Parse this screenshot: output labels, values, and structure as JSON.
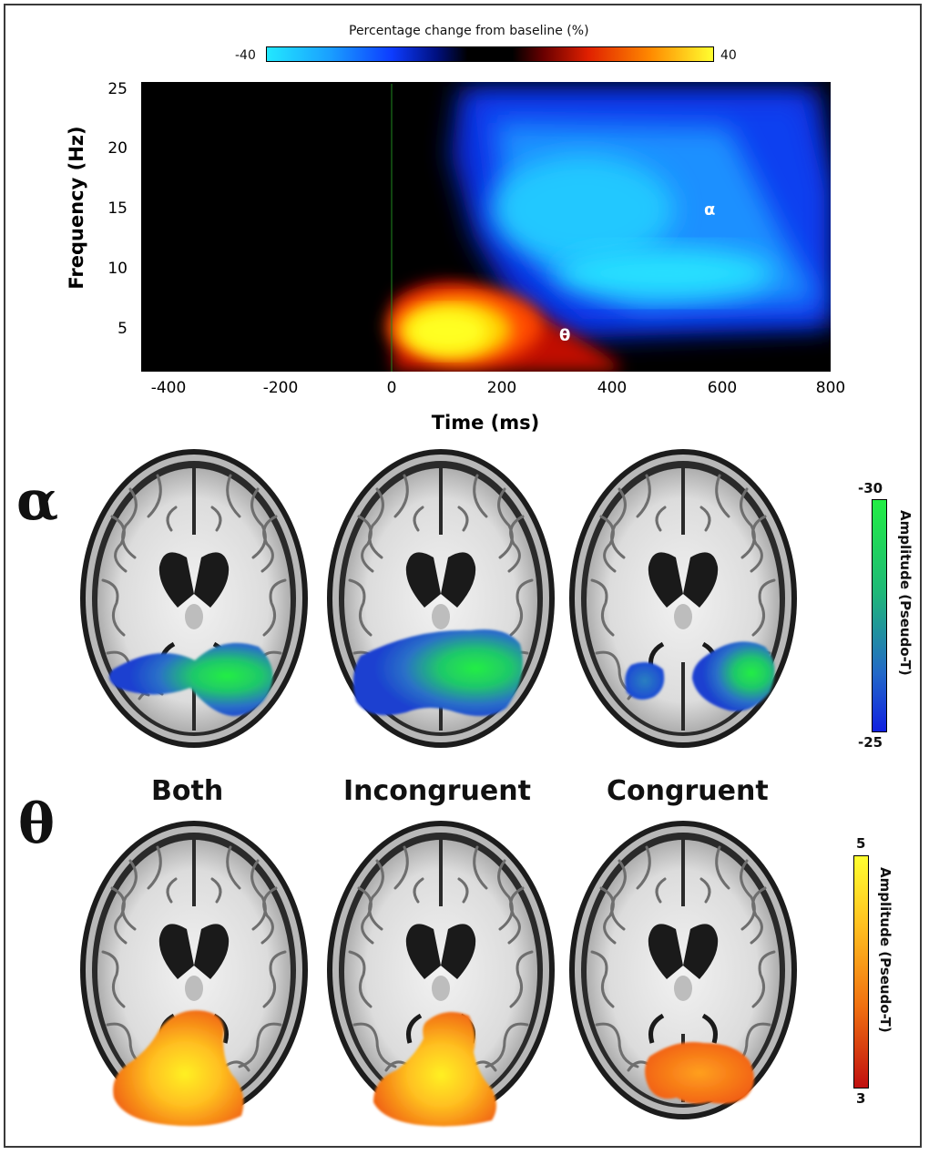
{
  "tfr": {
    "colorbar_title": "Percentage change from baseline (%)",
    "colorbar_min": "-40",
    "colorbar_max": "40",
    "xlabel": "Time (ms)",
    "ylabel": "Frequency (Hz)",
    "xticks": [
      "-400",
      "-200",
      "0",
      "200",
      "400",
      "600",
      "800"
    ],
    "yticks": [
      "25",
      "20",
      "15",
      "10",
      "5"
    ],
    "alpha_label": "α",
    "theta_label": "θ"
  },
  "chart_data": {
    "type": "heatmap",
    "title": "",
    "xlabel": "Time (ms)",
    "ylabel": "Frequency (Hz)",
    "xlim": [
      -450,
      800
    ],
    "ylim": [
      1,
      26
    ],
    "colorbar": {
      "label": "Percentage change from baseline (%)",
      "range": [
        -40,
        40
      ],
      "colormap": "cyan-blue-black-red-yellow"
    },
    "annotations": [
      {
        "text": "α",
        "x": 570,
        "y": 15
      },
      {
        "text": "θ",
        "x": 310,
        "y": 4
      }
    ],
    "regions": [
      {
        "band": "alpha",
        "time_range_ms": [
          120,
          800
        ],
        "freq_range_hz": [
          6,
          25
        ],
        "peak_change_pct": -40
      },
      {
        "band": "theta",
        "time_range_ms": [
          0,
          400
        ],
        "freq_range_hz": [
          1,
          8
        ],
        "peak_change_pct": 40
      }
    ],
    "event_marker_ms": 0
  },
  "brains": {
    "alpha_label": "α",
    "theta_label": "θ",
    "conditions": [
      "Both",
      "Incongruent",
      "Congruent"
    ],
    "alpha_colorbar": {
      "label": "Amplitude (Pseudo-T)",
      "top": "-30",
      "bottom": "-25"
    },
    "theta_colorbar": {
      "label": "Amplitude (Pseudo-T)",
      "top": "5",
      "bottom": "3"
    }
  },
  "colors": {
    "alpha_blob_low": "#1a3fd0",
    "alpha_blob_high": "#22e04a",
    "theta_blob_low": "#e8500a",
    "theta_blob_high": "#ffe81a"
  }
}
